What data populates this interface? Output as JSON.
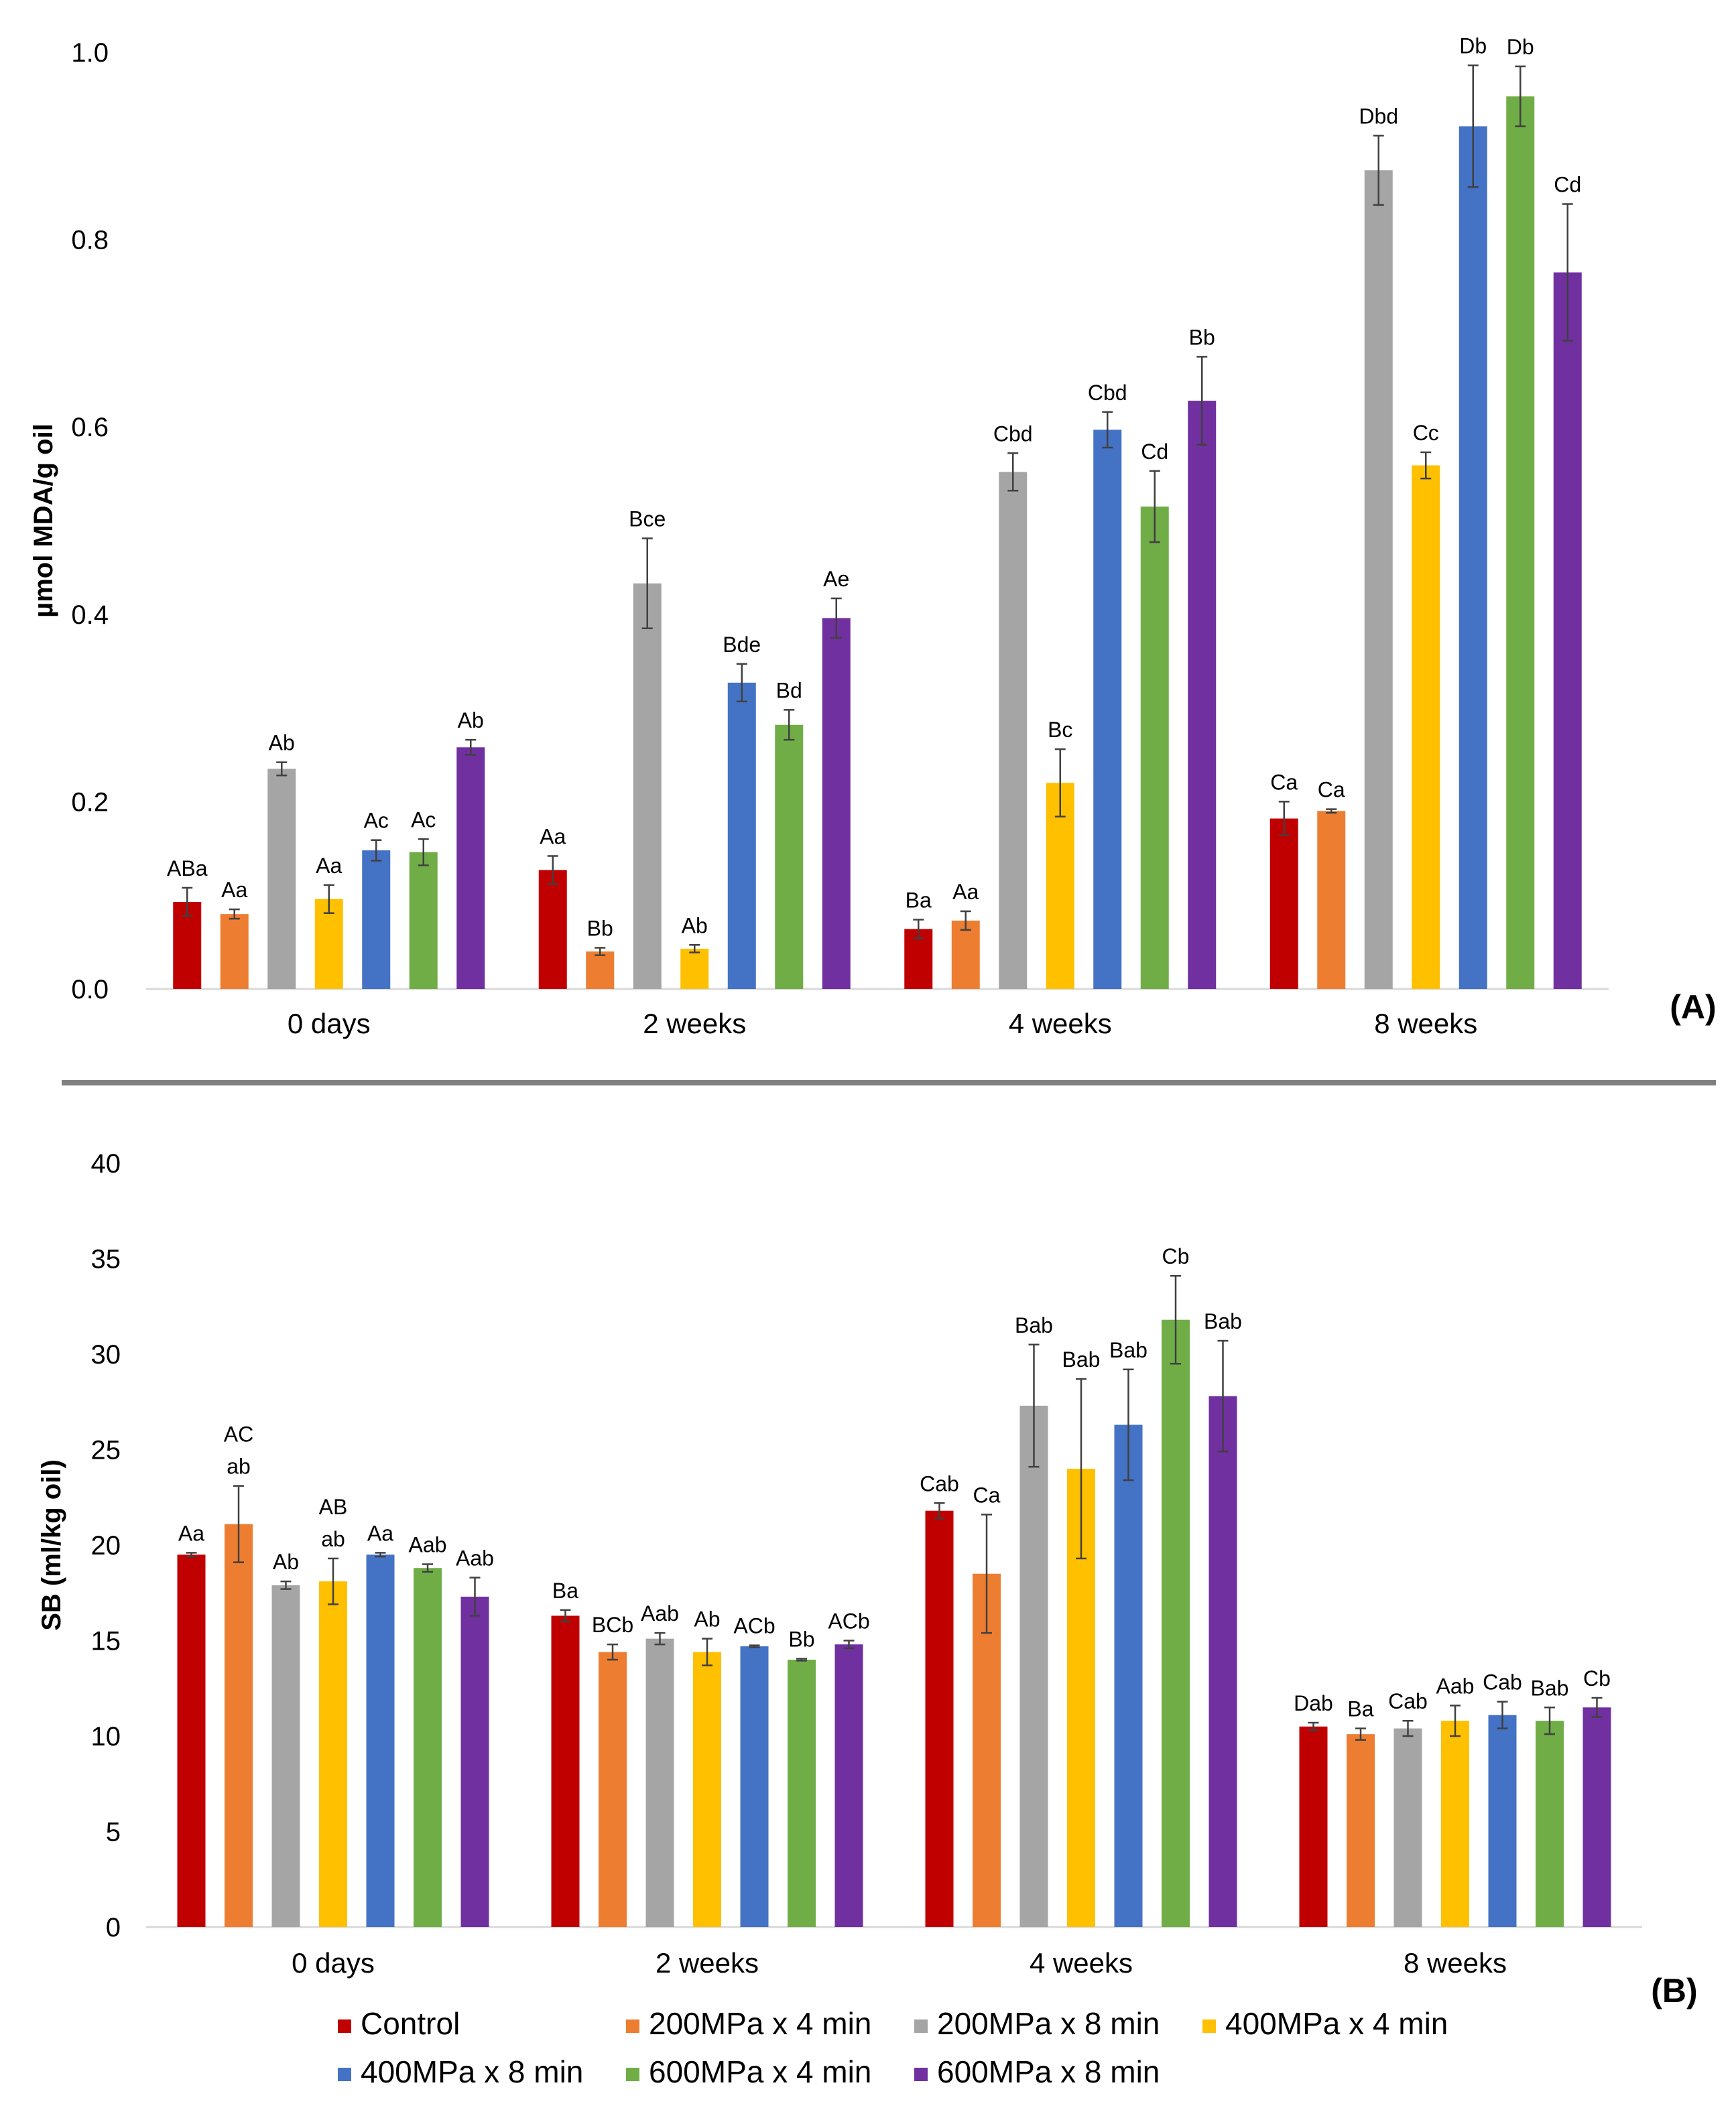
{
  "colors": {
    "Control": "#c00000",
    "200MPa x 4 min": "#ed7d31",
    "200MPa x 8 min": "#a5a5a5",
    "400MPa x 4 min": "#ffc000",
    "400MPa x 8 min": "#4472c4",
    "600MPa x 4 min": "#70ad47",
    "600MPa x 8 min": "#7030a0"
  },
  "legend": {
    "items": [
      "Control",
      "200MPa x 4 min",
      "200MPa x 8 min",
      "400MPa x 4 min",
      "400MPa x 8 min",
      "600MPa x 4 min",
      "600MPa x 8 min"
    ],
    "placement": "bottom"
  },
  "chart_data": [
    {
      "type": "bar",
      "panel_label": "(A)",
      "ylabel": "µmol MDA/g oil",
      "xlabel": "",
      "ylim": [
        0,
        1.0
      ],
      "yticks": [
        "0.0",
        "0.2",
        "0.4",
        "0.6",
        "0.8",
        "1.0"
      ],
      "grid": false,
      "categories": [
        "0 days",
        "2 weeks",
        "4 weeks",
        "8 weeks"
      ],
      "series": [
        {
          "name": "Control",
          "values": [
            0.093,
            0.127,
            0.064,
            0.182
          ],
          "errors": [
            0.015,
            0.015,
            0.01,
            0.018
          ],
          "labels": [
            "ABa",
            "Aa",
            "Ba",
            "Ca"
          ]
        },
        {
          "name": "200MPa x 4 min",
          "values": [
            0.08,
            0.04,
            0.073,
            0.19
          ],
          "errors": [
            0.005,
            0.004,
            0.01,
            0.002
          ],
          "labels": [
            "Aa",
            "Bb",
            "Aa",
            "Ca"
          ]
        },
        {
          "name": "200MPa x 8 min",
          "values": [
            0.235,
            0.433,
            0.552,
            0.874
          ],
          "errors": [
            0.007,
            0.048,
            0.02,
            0.037
          ],
          "labels": [
            "Ab",
            "Bce",
            "Cbd",
            "Dbd"
          ]
        },
        {
          "name": "400MPa x 4 min",
          "values": [
            0.096,
            0.043,
            0.22,
            0.559
          ],
          "errors": [
            0.015,
            0.004,
            0.036,
            0.014
          ],
          "labels": [
            "Aa",
            "Ab",
            "Bc",
            "Cc"
          ]
        },
        {
          "name": "400MPa x 8 min",
          "values": [
            0.148,
            0.327,
            0.597,
            0.921
          ],
          "errors": [
            0.011,
            0.02,
            0.019,
            0.065
          ],
          "labels": [
            "Ac",
            "Bde",
            "Cbd",
            "Db"
          ]
        },
        {
          "name": "600MPa x 4 min",
          "values": [
            0.146,
            0.282,
            0.515,
            0.953
          ],
          "errors": [
            0.014,
            0.016,
            0.038,
            0.032
          ],
          "labels": [
            "Ac",
            "Bd",
            "Cd",
            "Db"
          ]
        },
        {
          "name": "600MPa x 8 min",
          "values": [
            0.258,
            0.396,
            0.628,
            0.765
          ],
          "errors": [
            0.008,
            0.021,
            0.047,
            0.073
          ],
          "labels": [
            "Ab",
            "Ae",
            "Bb",
            "Cd"
          ]
        }
      ]
    },
    {
      "type": "bar",
      "panel_label": "(B)",
      "ylabel": "SB (ml/kg oil)",
      "xlabel": "",
      "ylim": [
        0,
        40
      ],
      "yticks": [
        "0",
        "5",
        "10",
        "15",
        "20",
        "25",
        "30",
        "35",
        "40"
      ],
      "grid": false,
      "categories": [
        "0 days",
        "2 weeks",
        "4 weeks",
        "8 weeks"
      ],
      "series": [
        {
          "name": "Control",
          "values": [
            19.5,
            16.3,
            21.8,
            10.5
          ],
          "errors": [
            0.1,
            0.3,
            0.4,
            0.2
          ],
          "labels": [
            "Aa",
            "Ba",
            "Cab",
            "Dab"
          ]
        },
        {
          "name": "200MPa x 4 min",
          "values": [
            21.1,
            14.4,
            18.5,
            10.1
          ],
          "errors": [
            2.0,
            0.4,
            3.1,
            0.3
          ],
          "labels": [
            "AC\nab",
            "BCb",
            "Ca",
            "Ba"
          ]
        },
        {
          "name": "200MPa x 8 min",
          "values": [
            17.9,
            15.1,
            27.3,
            10.4
          ],
          "errors": [
            0.2,
            0.3,
            3.2,
            0.4
          ],
          "labels": [
            "Ab",
            "Aab",
            "Bab",
            "Cab"
          ]
        },
        {
          "name": "400MPa x 4 min",
          "values": [
            18.1,
            14.4,
            24.0,
            10.8
          ],
          "errors": [
            1.2,
            0.7,
            4.7,
            0.8
          ],
          "labels": [
            "AB\nab",
            "Ab",
            "Bab",
            "Aab"
          ]
        },
        {
          "name": "400MPa x 8 min",
          "values": [
            19.5,
            14.7,
            26.3,
            11.1
          ],
          "errors": [
            0.1,
            0.05,
            2.9,
            0.7
          ],
          "labels": [
            "Aa",
            "ACb",
            "Bab",
            "Cab"
          ]
        },
        {
          "name": "600MPa x 4 min",
          "values": [
            18.8,
            14.0,
            31.8,
            10.8
          ],
          "errors": [
            0.2,
            0.05,
            2.3,
            0.7
          ],
          "labels": [
            "Aab",
            "Bb",
            "Cb",
            "Bab"
          ]
        },
        {
          "name": "600MPa x 8 min",
          "values": [
            17.3,
            14.8,
            27.8,
            11.5
          ],
          "errors": [
            1.0,
            0.2,
            2.9,
            0.5
          ],
          "labels": [
            "Aab",
            "ACb",
            "Bab",
            "Cb"
          ]
        }
      ]
    }
  ]
}
